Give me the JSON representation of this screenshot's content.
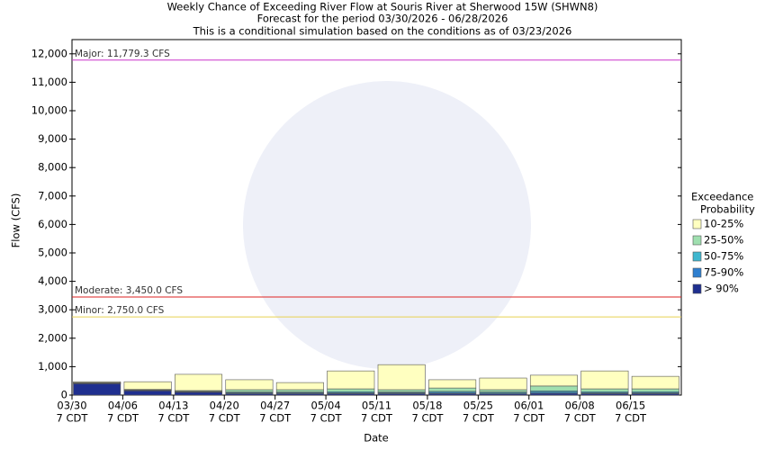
{
  "chart_data": {
    "type": "stacked_bar",
    "title": "Weekly Chance of Exceeding River Flow at Souris River at Sherwood 15W (SHWN8)",
    "subtitle": [
      "Forecast for the period 03/30/2026 - 06/28/2026",
      "This is a conditional simulation based on the conditions as of 03/23/2026"
    ],
    "x_label": "Date",
    "y_label": "Flow (CFS)",
    "categories": [
      [
        "03/30",
        "7 CDT"
      ],
      [
        "04/06",
        "7 CDT"
      ],
      [
        "04/13",
        "7 CDT"
      ],
      [
        "04/20",
        "7 CDT"
      ],
      [
        "04/27",
        "7 CDT"
      ],
      [
        "05/04",
        "7 CDT"
      ],
      [
        "05/11",
        "7 CDT"
      ],
      [
        "05/18",
        "7 CDT"
      ],
      [
        "05/25",
        "7 CDT"
      ],
      [
        "06/01",
        "7 CDT"
      ],
      [
        "06/08",
        "7 CDT"
      ],
      [
        "06/15",
        "7 CDT"
      ]
    ],
    "series": [
      {
        "name": "> 90%",
        "color": "#1f2f8f",
        "values": [
          400,
          150,
          100,
          50,
          50,
          50,
          50,
          50,
          40,
          60,
          50,
          50
        ]
      },
      {
        "name": "75-90%",
        "color": "#2f7fcf",
        "values": [
          10,
          20,
          20,
          30,
          30,
          30,
          30,
          40,
          30,
          40,
          30,
          30
        ]
      },
      {
        "name": "50-75%",
        "color": "#3fb7cf",
        "values": [
          10,
          10,
          10,
          30,
          30,
          40,
          30,
          40,
          40,
          50,
          40,
          40
        ]
      },
      {
        "name": "25-50%",
        "color": "#9fdfaf",
        "values": [
          20,
          20,
          30,
          80,
          80,
          100,
          80,
          120,
          80,
          170,
          100,
          100
        ]
      },
      {
        "name": "10-25%",
        "color": "#ffffc0",
        "values": [
          30,
          270,
          570,
          350,
          250,
          630,
          880,
          290,
          410,
          380,
          630,
          440
        ]
      }
    ],
    "legend_title": [
      "Exceedance",
      "Probability"
    ],
    "thresholds": [
      {
        "label": "Major: 11,779.3 CFS",
        "value": 11779.3,
        "color": "#cc33cc"
      },
      {
        "label": "Moderate: 3,450.0 CFS",
        "value": 3450,
        "color": "#dd2222"
      },
      {
        "label": "Minor: 2,750.0 CFS",
        "value": 2750,
        "color": "#e8d050"
      }
    ],
    "ylim": [
      0,
      12500
    ],
    "yticks": [
      0,
      {
        "value": 1000,
        "label": "1,000"
      },
      {
        "value": 2000,
        "label": "2,000"
      },
      {
        "value": 3000,
        "label": "3,000"
      },
      {
        "value": 4000,
        "label": "4,000"
      },
      {
        "value": 5000,
        "label": "5,000"
      },
      {
        "value": 6000,
        "label": "6,000"
      },
      {
        "value": 7000,
        "label": "7,000"
      },
      {
        "value": 8000,
        "label": "8,000"
      },
      {
        "value": 9000,
        "label": "9,000"
      },
      {
        "value": 10000,
        "label": "10,000"
      },
      {
        "value": 11000,
        "label": "11,000"
      },
      {
        "value": 12000,
        "label": "12,000"
      }
    ]
  }
}
